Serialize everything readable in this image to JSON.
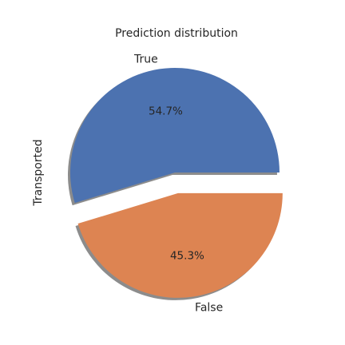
{
  "chart_data": {
    "type": "pie",
    "title": "Prediction distribution",
    "ylabel": "Transported",
    "start_angle_deg": 0,
    "direction": "counterclockwise",
    "explode": [
      0,
      0.2
    ],
    "shadow": true,
    "slices": [
      {
        "label": "True",
        "value": 54.7,
        "pct_label": "54.7%",
        "color": "#4c72b0"
      },
      {
        "label": "False",
        "value": 45.3,
        "pct_label": "45.3%",
        "color": "#dd8452"
      }
    ]
  }
}
